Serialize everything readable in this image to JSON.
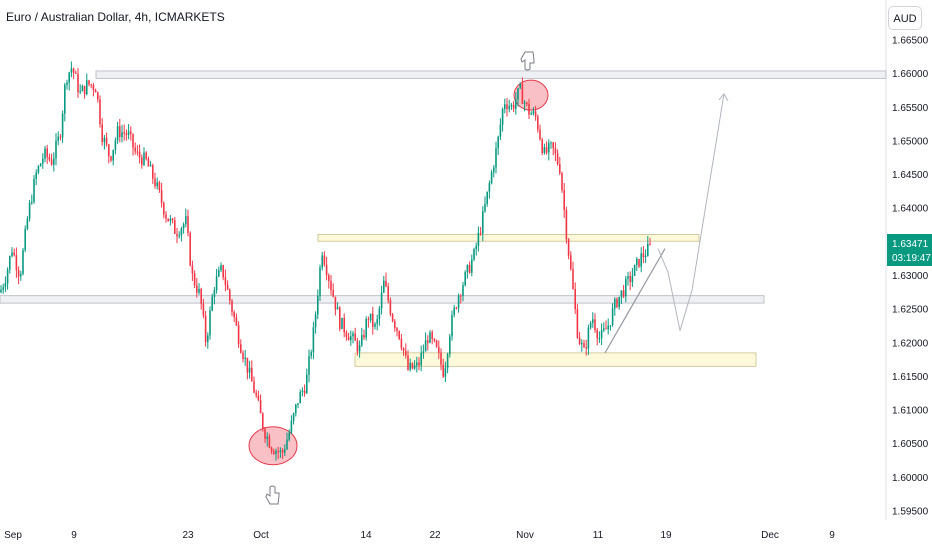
{
  "header": {
    "title": "Euro / Australian Dollar, 4h, ICMARKETS",
    "currency": "AUD"
  },
  "colors": {
    "up": "#089981",
    "down": "#f23645",
    "zone_gray": "#d1d4dc",
    "zone_yellow": "#fff9db",
    "circle": "#f7a6ae",
    "price_tag": "#089981"
  },
  "price_tag": {
    "price": "1.63471",
    "countdown": "03:19:47"
  },
  "chart_data": {
    "type": "candlestick",
    "ylim": [
      1.593,
      1.6685
    ],
    "x_ticks": [
      "Sep",
      "9",
      "23",
      "Oct",
      "14",
      "22",
      "Nov",
      "11",
      "19",
      "Dec",
      "9"
    ],
    "y_ticks": [
      "1.66500",
      "1.66000",
      "1.65500",
      "1.65000",
      "1.64500",
      "1.64000",
      "1.63500",
      "1.63000",
      "1.62500",
      "1.62000",
      "1.61500",
      "1.61000",
      "1.60500",
      "1.60000",
      "1.59500"
    ],
    "last_price": 1.63471,
    "price_path": [
      [
        0,
        1.6275
      ],
      [
        6,
        1.63
      ],
      [
        12,
        1.634
      ],
      [
        20,
        1.63
      ],
      [
        28,
        1.639
      ],
      [
        36,
        1.645
      ],
      [
        44,
        1.648
      ],
      [
        52,
        1.647
      ],
      [
        60,
        1.651
      ],
      [
        66,
        1.6595
      ],
      [
        72,
        1.661
      ],
      [
        80,
        1.657
      ],
      [
        88,
        1.6585
      ],
      [
        96,
        1.658
      ],
      [
        102,
        1.651
      ],
      [
        110,
        1.6475
      ],
      [
        118,
        1.6515
      ],
      [
        128,
        1.651
      ],
      [
        136,
        1.648
      ],
      [
        146,
        1.647
      ],
      [
        156,
        1.6435
      ],
      [
        166,
        1.639
      ],
      [
        176,
        1.6365
      ],
      [
        186,
        1.638
      ],
      [
        192,
        1.63
      ],
      [
        200,
        1.627
      ],
      [
        206,
        1.62
      ],
      [
        214,
        1.6285
      ],
      [
        222,
        1.631
      ],
      [
        232,
        1.625
      ],
      [
        240,
        1.62
      ],
      [
        248,
        1.616
      ],
      [
        256,
        1.612
      ],
      [
        264,
        1.607
      ],
      [
        272,
        1.6045
      ],
      [
        282,
        1.6035
      ],
      [
        290,
        1.607
      ],
      [
        298,
        1.6115
      ],
      [
        306,
        1.614
      ],
      [
        314,
        1.622
      ],
      [
        322,
        1.634
      ],
      [
        330,
        1.629
      ],
      [
        340,
        1.623
      ],
      [
        350,
        1.621
      ],
      [
        360,
        1.619
      ],
      [
        368,
        1.624
      ],
      [
        376,
        1.622
      ],
      [
        384,
        1.629
      ],
      [
        392,
        1.624
      ],
      [
        400,
        1.621
      ],
      [
        408,
        1.616
      ],
      [
        418,
        1.6165
      ],
      [
        428,
        1.621
      ],
      [
        436,
        1.619
      ],
      [
        444,
        1.6155
      ],
      [
        450,
        1.622
      ],
      [
        458,
        1.627
      ],
      [
        466,
        1.63
      ],
      [
        474,
        1.633
      ],
      [
        482,
        1.638
      ],
      [
        490,
        1.644
      ],
      [
        498,
        1.65
      ],
      [
        504,
        1.656
      ],
      [
        512,
        1.655
      ],
      [
        520,
        1.6575
      ],
      [
        528,
        1.6545
      ],
      [
        536,
        1.6535
      ],
      [
        544,
        1.648
      ],
      [
        552,
        1.649
      ],
      [
        560,
        1.646
      ],
      [
        566,
        1.637
      ],
      [
        572,
        1.629
      ],
      [
        578,
        1.621
      ],
      [
        584,
        1.6185
      ],
      [
        592,
        1.624
      ],
      [
        600,
        1.6205
      ],
      [
        608,
        1.6225
      ],
      [
        616,
        1.626
      ],
      [
        624,
        1.628
      ],
      [
        632,
        1.63
      ],
      [
        640,
        1.6325
      ],
      [
        646,
        1.6335
      ],
      [
        652,
        1.6345
      ]
    ],
    "zones": [
      {
        "color": "gray",
        "x1": 96,
        "x2": 886,
        "y1": 1.6604,
        "y2": 1.6593
      },
      {
        "color": "gray",
        "x1": 0,
        "x2": 764,
        "y1": 1.627,
        "y2": 1.6259
      },
      {
        "color": "yellow",
        "x1": 318,
        "x2": 699,
        "y1": 1.6361,
        "y2": 1.6351
      },
      {
        "color": "yellow",
        "x1": 355,
        "x2": 756,
        "y1": 1.6185,
        "y2": 1.6165
      }
    ],
    "circles": [
      {
        "x": 531,
        "y": 1.6568,
        "rx": 17,
        "ry": 15
      },
      {
        "x": 273,
        "y": 1.6047,
        "rx": 24,
        "ry": 19
      }
    ],
    "trendline": [
      [
        605,
        1.6185
      ],
      [
        665,
        1.634
      ]
    ],
    "projection": [
      [
        658,
        1.634
      ],
      [
        668,
        1.6305
      ],
      [
        680,
        1.6218
      ],
      [
        692,
        1.6278
      ],
      [
        724,
        1.657
      ]
    ]
  }
}
